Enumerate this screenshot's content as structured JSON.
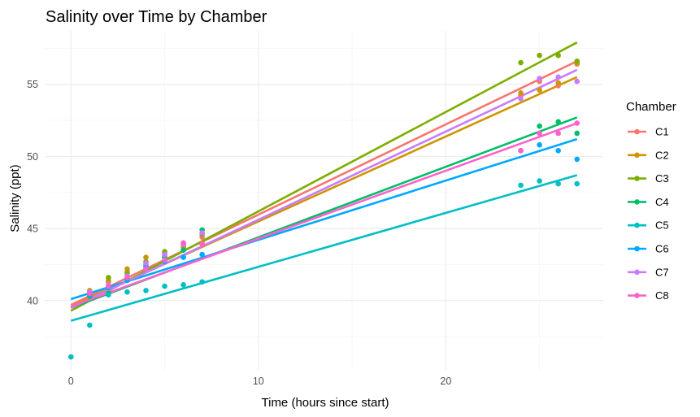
{
  "chart_data": {
    "type": "scatter",
    "title": "Salinity over Time by Chamber",
    "xlabel": "Time (hours since start)",
    "ylabel": "Salinity (ppt)",
    "xlim": [
      -1.4,
      28.4
    ],
    "ylim": [
      35.2,
      58.7
    ],
    "x_ticks": [
      0,
      10,
      20
    ],
    "y_ticks": [
      40,
      45,
      50,
      55
    ],
    "grid": true,
    "legend": {
      "title": "Chamber",
      "position": "right"
    },
    "series": [
      {
        "name": "C1",
        "color": "#F8766D",
        "points": [
          [
            1,
            40.5
          ],
          [
            2,
            41.3
          ],
          [
            3,
            42.0
          ],
          [
            4,
            42.5
          ],
          [
            5,
            43.1
          ],
          [
            6,
            43.8
          ],
          [
            7,
            44.4
          ],
          [
            24,
            54.2
          ],
          [
            25,
            55.2
          ],
          [
            26,
            54.9
          ],
          [
            27,
            56.4
          ]
        ],
        "trend": [
          [
            0,
            39.7
          ],
          [
            27,
            56.6
          ]
        ]
      },
      {
        "name": "C2",
        "color": "#CD9600",
        "points": [
          [
            1,
            40.7
          ],
          [
            2,
            41.4
          ],
          [
            3,
            42.2
          ],
          [
            4,
            43.0
          ],
          [
            5,
            43.3
          ],
          [
            6,
            43.7
          ],
          [
            7,
            44.0
          ],
          [
            24,
            54.4
          ],
          [
            25,
            54.6
          ],
          [
            26,
            55.1
          ],
          [
            27,
            56.5
          ]
        ],
        "trend": [
          [
            0,
            39.6
          ],
          [
            27,
            55.5
          ]
        ]
      },
      {
        "name": "C3",
        "color": "#7CAE00",
        "points": [
          [
            1,
            40.6
          ],
          [
            2,
            41.6
          ],
          [
            3,
            41.9
          ],
          [
            4,
            42.7
          ],
          [
            5,
            43.4
          ],
          [
            6,
            43.9
          ],
          [
            7,
            44.6
          ],
          [
            24,
            56.5
          ],
          [
            25,
            57.0
          ],
          [
            26,
            57.0
          ],
          [
            27,
            56.6
          ]
        ],
        "trend": [
          [
            0,
            39.3
          ],
          [
            27,
            57.9
          ]
        ]
      },
      {
        "name": "C4",
        "color": "#00BE67",
        "points": [
          [
            1,
            40.3
          ],
          [
            2,
            40.5
          ],
          [
            3,
            41.5
          ],
          [
            4,
            42.3
          ],
          [
            5,
            43.0
          ],
          [
            6,
            43.5
          ],
          [
            7,
            44.9
          ],
          [
            24,
            50.4
          ],
          [
            25,
            52.1
          ],
          [
            26,
            52.4
          ],
          [
            27,
            51.6
          ]
        ],
        "trend": [
          [
            0,
            39.5
          ],
          [
            27,
            52.7
          ]
        ]
      },
      {
        "name": "C5",
        "color": "#00BFC4",
        "points": [
          [
            0,
            36.1
          ],
          [
            1,
            38.3
          ],
          [
            2,
            40.4
          ],
          [
            3,
            40.6
          ],
          [
            4,
            40.7
          ],
          [
            5,
            41.0
          ],
          [
            6,
            41.1
          ],
          [
            7,
            41.3
          ],
          [
            24,
            48.0
          ],
          [
            25,
            48.3
          ],
          [
            26,
            48.1
          ],
          [
            27,
            48.1
          ]
        ],
        "trend": [
          [
            0,
            38.6
          ],
          [
            27,
            48.7
          ]
        ]
      },
      {
        "name": "C6",
        "color": "#00A9FF",
        "points": [
          [
            1,
            40.4
          ],
          [
            2,
            40.9
          ],
          [
            3,
            41.4
          ],
          [
            4,
            42.4
          ],
          [
            5,
            42.7
          ],
          [
            6,
            43.0
          ],
          [
            7,
            43.2
          ],
          [
            24,
            50.4
          ],
          [
            25,
            50.8
          ],
          [
            26,
            50.4
          ],
          [
            27,
            49.8
          ]
        ],
        "trend": [
          [
            0,
            40.1
          ],
          [
            27,
            51.2
          ]
        ]
      },
      {
        "name": "C7",
        "color": "#C77CFF",
        "points": [
          [
            1,
            40.6
          ],
          [
            2,
            41.1
          ],
          [
            3,
            41.7
          ],
          [
            4,
            42.6
          ],
          [
            5,
            43.2
          ],
          [
            6,
            43.9
          ],
          [
            7,
            44.7
          ],
          [
            24,
            54.0
          ],
          [
            25,
            55.4
          ],
          [
            26,
            55.5
          ],
          [
            27,
            55.2
          ]
        ],
        "trend": [
          [
            0,
            39.5
          ],
          [
            27,
            56.0
          ]
        ]
      },
      {
        "name": "C8",
        "color": "#FF61CC",
        "points": [
          [
            1,
            40.5
          ],
          [
            2,
            41.0
          ],
          [
            3,
            41.6
          ],
          [
            4,
            42.2
          ],
          [
            5,
            42.8
          ],
          [
            6,
            44.0
          ],
          [
            7,
            43.9
          ],
          [
            24,
            50.4
          ],
          [
            25,
            51.6
          ],
          [
            26,
            51.6
          ],
          [
            27,
            52.3
          ]
        ],
        "trend": [
          [
            0,
            39.6
          ],
          [
            27,
            52.3
          ]
        ]
      }
    ]
  }
}
